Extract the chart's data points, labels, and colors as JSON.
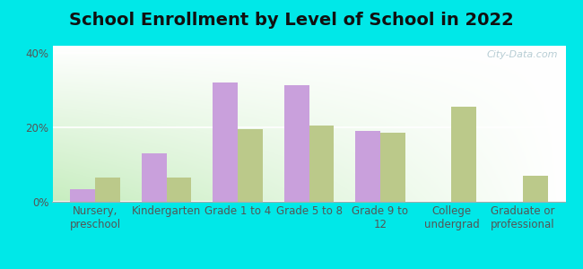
{
  "title": "School Enrollment by Level of School in 2022",
  "categories": [
    "Nursery,\npreschool",
    "Kindergarten",
    "Grade 1 to 4",
    "Grade 5 to 8",
    "Grade 9 to\n12",
    "College\nundergrad",
    "Graduate or\nprofessional"
  ],
  "zip_values": [
    3.5,
    13.0,
    32.0,
    31.5,
    19.0,
    0.0,
    0.0
  ],
  "nd_values": [
    6.5,
    6.5,
    19.5,
    20.5,
    18.5,
    25.5,
    7.0
  ],
  "zip_color": "#c9a0dc",
  "nd_color": "#bbc98a",
  "background_color": "#00e8e8",
  "ylim": [
    0,
    42
  ],
  "yticks": [
    0,
    20,
    40
  ],
  "ytick_labels": [
    "0%",
    "20%",
    "40%"
  ],
  "title_fontsize": 14,
  "tick_fontsize": 8.5,
  "legend_fontsize": 9.5,
  "watermark": "City-Data.com"
}
